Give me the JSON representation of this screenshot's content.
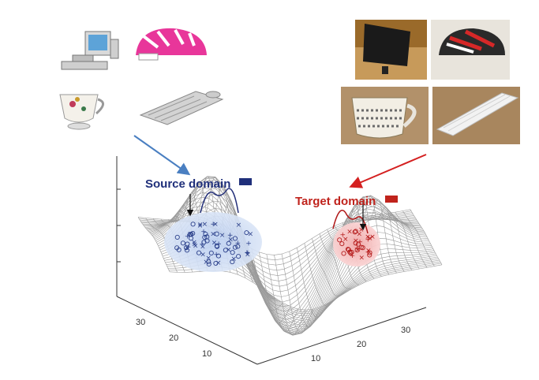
{
  "source": {
    "label": "Source domain",
    "color": "#1f2f7a",
    "region_color": "#c9d9f2",
    "images": [
      "desktop-computer-clipart",
      "pink-bike-helmet-clipart",
      "floral-teacup-clipart",
      "keyboard-clipart"
    ]
  },
  "target": {
    "label": "Target domain",
    "color": "#c0231c",
    "region_color": "#f3b8b8",
    "images": [
      "monitor-photo",
      "bike-helmet-photo",
      "mug-photo",
      "keyboard-photo"
    ]
  },
  "axes": {
    "left_ticks": [
      "30",
      "20",
      "10"
    ],
    "right_ticks": [
      "10",
      "20",
      "30"
    ]
  },
  "colors": {
    "arrow_source": "#4a7fc1",
    "arrow_target": "#d42020",
    "mesh": "#9a9a9a"
  }
}
